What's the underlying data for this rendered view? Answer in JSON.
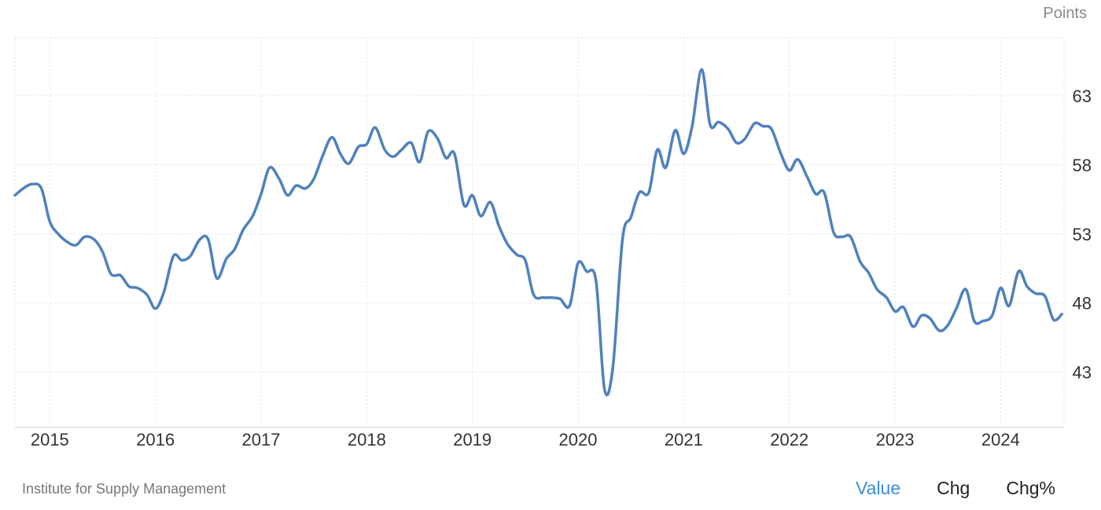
{
  "chart_data": {
    "type": "line",
    "unit_label": "Points",
    "x_ticks": [
      "2015",
      "2016",
      "2017",
      "2018",
      "2019",
      "2020",
      "2021",
      "2022",
      "2023",
      "2024"
    ],
    "y_ticks": [
      43,
      48,
      53,
      58,
      63
    ],
    "ylim": [
      39,
      67.2
    ],
    "xlim": [
      2014.67,
      2024.6
    ],
    "grid": true,
    "line_color": "#4f81bd",
    "series": [
      {
        "points": [
          [
            2014.67,
            55.8
          ],
          [
            2014.75,
            56.3
          ],
          [
            2014.83,
            56.6
          ],
          [
            2014.92,
            56.3
          ],
          [
            2015.0,
            53.9
          ],
          [
            2015.08,
            53.0
          ],
          [
            2015.17,
            52.4
          ],
          [
            2015.25,
            52.2
          ],
          [
            2015.33,
            52.8
          ],
          [
            2015.42,
            52.6
          ],
          [
            2015.5,
            51.7
          ],
          [
            2015.58,
            50.1
          ],
          [
            2015.67,
            50.0
          ],
          [
            2015.75,
            49.2
          ],
          [
            2015.83,
            49.1
          ],
          [
            2015.92,
            48.6
          ],
          [
            2016.0,
            47.6
          ],
          [
            2016.08,
            48.8
          ],
          [
            2016.17,
            51.4
          ],
          [
            2016.25,
            51.1
          ],
          [
            2016.33,
            51.4
          ],
          [
            2016.42,
            52.6
          ],
          [
            2016.5,
            52.6
          ],
          [
            2016.58,
            49.8
          ],
          [
            2016.67,
            51.2
          ],
          [
            2016.75,
            51.9
          ],
          [
            2016.83,
            53.3
          ],
          [
            2016.92,
            54.3
          ],
          [
            2017.0,
            55.9
          ],
          [
            2017.08,
            57.8
          ],
          [
            2017.17,
            57.0
          ],
          [
            2017.25,
            55.8
          ],
          [
            2017.33,
            56.5
          ],
          [
            2017.42,
            56.3
          ],
          [
            2017.5,
            57.0
          ],
          [
            2017.58,
            58.6
          ],
          [
            2017.67,
            60.0
          ],
          [
            2017.75,
            58.8
          ],
          [
            2017.83,
            58.1
          ],
          [
            2017.92,
            59.3
          ],
          [
            2018.0,
            59.5
          ],
          [
            2018.08,
            60.7
          ],
          [
            2018.17,
            59.1
          ],
          [
            2018.25,
            58.6
          ],
          [
            2018.33,
            59.1
          ],
          [
            2018.42,
            59.6
          ],
          [
            2018.5,
            58.2
          ],
          [
            2018.58,
            60.4
          ],
          [
            2018.67,
            59.9
          ],
          [
            2018.75,
            58.5
          ],
          [
            2018.83,
            58.8
          ],
          [
            2018.92,
            55.1
          ],
          [
            2019.0,
            55.8
          ],
          [
            2019.08,
            54.3
          ],
          [
            2019.17,
            55.3
          ],
          [
            2019.25,
            53.6
          ],
          [
            2019.33,
            52.3
          ],
          [
            2019.42,
            51.5
          ],
          [
            2019.5,
            51.1
          ],
          [
            2019.58,
            48.6
          ],
          [
            2019.67,
            48.4
          ],
          [
            2019.75,
            48.4
          ],
          [
            2019.83,
            48.3
          ],
          [
            2019.92,
            47.8
          ],
          [
            2020.0,
            50.9
          ],
          [
            2020.08,
            50.3
          ],
          [
            2020.17,
            49.6
          ],
          [
            2020.25,
            41.8
          ],
          [
            2020.33,
            43.4
          ],
          [
            2020.42,
            52.6
          ],
          [
            2020.5,
            54.2
          ],
          [
            2020.58,
            56.0
          ],
          [
            2020.67,
            56.0
          ],
          [
            2020.75,
            59.1
          ],
          [
            2020.83,
            57.8
          ],
          [
            2020.92,
            60.5
          ],
          [
            2021.0,
            58.8
          ],
          [
            2021.08,
            60.8
          ],
          [
            2021.17,
            64.9
          ],
          [
            2021.25,
            60.9
          ],
          [
            2021.33,
            61.1
          ],
          [
            2021.42,
            60.6
          ],
          [
            2021.5,
            59.6
          ],
          [
            2021.58,
            59.9
          ],
          [
            2021.67,
            61.0
          ],
          [
            2021.75,
            60.8
          ],
          [
            2021.83,
            60.6
          ],
          [
            2021.92,
            58.8
          ],
          [
            2022.0,
            57.6
          ],
          [
            2022.08,
            58.4
          ],
          [
            2022.17,
            57.1
          ],
          [
            2022.25,
            55.9
          ],
          [
            2022.33,
            56.0
          ],
          [
            2022.42,
            53.1
          ],
          [
            2022.5,
            52.8
          ],
          [
            2022.58,
            52.8
          ],
          [
            2022.67,
            51.0
          ],
          [
            2022.75,
            50.2
          ],
          [
            2022.83,
            49.0
          ],
          [
            2022.92,
            48.4
          ],
          [
            2023.0,
            47.4
          ],
          [
            2023.08,
            47.7
          ],
          [
            2023.17,
            46.3
          ],
          [
            2023.25,
            47.1
          ],
          [
            2023.33,
            46.9
          ],
          [
            2023.42,
            46.0
          ],
          [
            2023.5,
            46.4
          ],
          [
            2023.58,
            47.6
          ],
          [
            2023.67,
            49.0
          ],
          [
            2023.75,
            46.7
          ],
          [
            2023.83,
            46.7
          ],
          [
            2023.92,
            47.1
          ],
          [
            2024.0,
            49.1
          ],
          [
            2024.08,
            47.8
          ],
          [
            2024.17,
            50.3
          ],
          [
            2024.25,
            49.2
          ],
          [
            2024.33,
            48.7
          ],
          [
            2024.42,
            48.5
          ],
          [
            2024.5,
            46.8
          ],
          [
            2024.58,
            47.2
          ]
        ]
      }
    ]
  },
  "footer": {
    "source": "Institute for Supply Management",
    "tabs": [
      {
        "label": "Value",
        "active": true
      },
      {
        "label": "Chg",
        "active": false
      },
      {
        "label": "Chg%",
        "active": false
      }
    ]
  }
}
